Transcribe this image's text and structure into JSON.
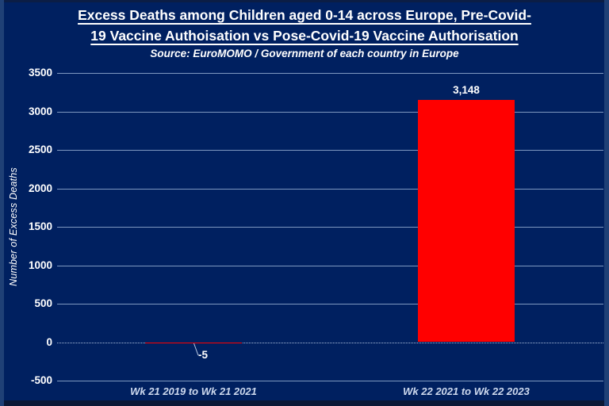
{
  "title": {
    "line1": "Excess Deaths among Children aged 0-14 across Europe, Pre-Covid-",
    "line2": "19 Vaccine Authoisation vs Pose-Covid-19 Vaccine Authorisation",
    "subtitle": "Source: EuroMOMO / Government of each country in Europe"
  },
  "chart_data": {
    "type": "bar",
    "title": "Excess Deaths among Children aged 0-14 across Europe, Pre-Covid-19 Vaccine Authoisation vs Pose-Covid-19 Vaccine Authorisation",
    "subtitle": "Source: EuroMOMO / Government of each country in Europe",
    "categories": [
      "Wk 21 2019 to Wk 21 2021",
      "Wk 22 2021 to Wk 22 2023"
    ],
    "values": [
      -5,
      3148
    ],
    "bar_labels": [
      "-5",
      "3,148"
    ],
    "bar_color": "#FF0000",
    "xlabel": "",
    "ylabel": "Number of Excess Deaths",
    "ylim": [
      -500,
      3500
    ],
    "ytick_step": 500,
    "yticks": [
      3500,
      3000,
      2500,
      2000,
      1500,
      1000,
      500,
      0,
      -500
    ],
    "ytick_labels": [
      "3500",
      "3000",
      "2500",
      "2000",
      "1500",
      "1000",
      "500",
      "0",
      "-500"
    ],
    "grid": true,
    "zero_line_style": "dotted",
    "legend": false
  },
  "colors": {
    "background": "#002060",
    "gridline": "#7E98C0",
    "zero_line": "#A9BCD8",
    "bar": "#FF0000",
    "text": "#FFFFFF",
    "x_label_text": "#CDD9EE"
  }
}
